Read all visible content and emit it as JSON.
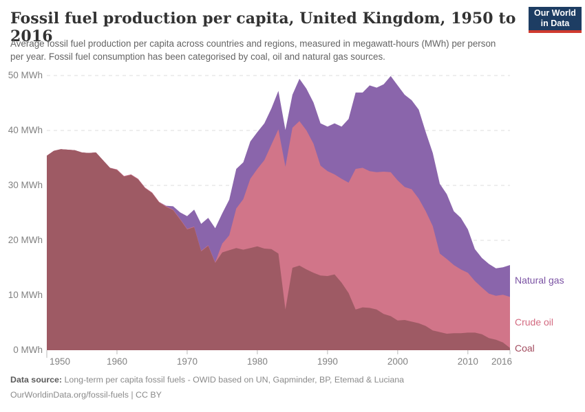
{
  "header": {
    "title": "Fossil fuel production per capita, United Kingdom, 1950 to 2016",
    "subtitle": "Average fossil fuel production per capita across countries and regions, measured in megawatt-hours (MWh) per person per year. Fossil fuel consumption has been categorised by coal, oil and natural gas sources.",
    "logo": {
      "line1": "Our World",
      "line2": "in Data"
    }
  },
  "colors": {
    "logo_bg": "#1d3d63",
    "logo_accent": "#d03a2f",
    "grid": "#dcdcdc",
    "tick": "#b8b8b8",
    "axis_text": "#818181"
  },
  "chart_data": {
    "type": "area",
    "stacked": true,
    "title": "Fossil fuel production per capita, United Kingdom, 1950 to 2016",
    "ylabel": "",
    "xlabel": "",
    "ylim": [
      0,
      50
    ],
    "grid": "horizontal-dashed",
    "legend_position": "right-of-plot",
    "x": [
      1950,
      1951,
      1952,
      1953,
      1954,
      1955,
      1956,
      1957,
      1958,
      1959,
      1960,
      1961,
      1962,
      1963,
      1964,
      1965,
      1966,
      1967,
      1968,
      1969,
      1970,
      1971,
      1972,
      1973,
      1974,
      1975,
      1976,
      1977,
      1978,
      1979,
      1980,
      1981,
      1982,
      1983,
      1984,
      1985,
      1986,
      1987,
      1988,
      1989,
      1990,
      1991,
      1992,
      1993,
      1994,
      1995,
      1996,
      1997,
      1998,
      1999,
      2000,
      2001,
      2002,
      2003,
      2004,
      2005,
      2006,
      2007,
      2008,
      2009,
      2010,
      2011,
      2012,
      2013,
      2014,
      2015,
      2016
    ],
    "unit": "MWh",
    "series": [
      {
        "name": "Coal",
        "color": "#9e5a64",
        "label_color": "#a24b5e",
        "values": [
          35.4,
          36.3,
          36.6,
          36.5,
          36.4,
          36.0,
          35.9,
          36.0,
          34.6,
          33.2,
          32.8,
          31.6,
          31.9,
          31.1,
          29.5,
          28.6,
          26.9,
          26.1,
          25.5,
          23.8,
          22.0,
          22.4,
          18.0,
          19.0,
          15.9,
          17.8,
          18.2,
          18.6,
          18.3,
          18.6,
          18.9,
          18.5,
          18.4,
          17.6,
          7.4,
          15.0,
          15.4,
          14.7,
          14.1,
          13.6,
          13.5,
          13.8,
          12.3,
          10.4,
          7.4,
          7.8,
          7.7,
          7.4,
          6.6,
          6.2,
          5.4,
          5.5,
          5.2,
          4.9,
          4.4,
          3.6,
          3.3,
          3.0,
          3.1,
          3.1,
          3.2,
          3.2,
          2.9,
          2.2,
          1.9,
          1.4,
          0.4
        ]
      },
      {
        "name": "Crude oil",
        "color": "#d17589",
        "label_color": "#d36a80",
        "values": [
          0,
          0,
          0,
          0,
          0,
          0,
          0,
          0,
          0,
          0,
          0.1,
          0.1,
          0.1,
          0.1,
          0.1,
          0.1,
          0.1,
          0.1,
          0.1,
          0.1,
          0.1,
          0.1,
          0.1,
          0.1,
          0.1,
          1.6,
          2.7,
          7.2,
          9.2,
          12.6,
          14.1,
          16.1,
          19.0,
          22.6,
          26.0,
          25.5,
          26.3,
          25.3,
          23.5,
          20.0,
          19.1,
          18.2,
          18.9,
          20.1,
          25.6,
          25.4,
          24.9,
          25.0,
          25.9,
          26.2,
          25.5,
          24.2,
          24.1,
          22.7,
          20.9,
          19.0,
          14.3,
          13.6,
          12.4,
          11.6,
          10.9,
          9.4,
          8.5,
          8.1,
          8.0,
          8.7,
          9.3
        ]
      },
      {
        "name": "Natural gas",
        "color": "#8a65ab",
        "label_color": "#7a52a3",
        "values": [
          0,
          0,
          0,
          0,
          0,
          0,
          0,
          0,
          0,
          0,
          0,
          0,
          0,
          0,
          0,
          0,
          0,
          0.1,
          0.6,
          1.2,
          2.3,
          3.1,
          4.9,
          5.0,
          6.2,
          5.5,
          6.5,
          7.2,
          6.7,
          6.8,
          6.7,
          6.7,
          6.6,
          7.0,
          6.7,
          6.0,
          7.7,
          7.6,
          7.5,
          7.7,
          8.1,
          9.3,
          9.5,
          11.6,
          13.9,
          13.7,
          15.6,
          15.4,
          15.9,
          17.5,
          17.3,
          16.8,
          16.2,
          16.2,
          14.4,
          13.3,
          12.7,
          11.8,
          9.8,
          9.4,
          7.9,
          5.8,
          5.4,
          5.4,
          5.0,
          5.0,
          5.8
        ]
      }
    ],
    "yticks": [
      {
        "value": 0,
        "label": "0 MWh"
      },
      {
        "value": 10,
        "label": "10 MWh"
      },
      {
        "value": 20,
        "label": "20 MWh"
      },
      {
        "value": 30,
        "label": "30 MWh"
      },
      {
        "value": 40,
        "label": "40 MWh"
      },
      {
        "value": 50,
        "label": "50 MWh"
      }
    ],
    "xticks": [
      {
        "value": 1950,
        "label": "1950"
      },
      {
        "value": 1960,
        "label": "1960"
      },
      {
        "value": 1970,
        "label": "1970"
      },
      {
        "value": 1980,
        "label": "1980"
      },
      {
        "value": 1990,
        "label": "1990"
      },
      {
        "value": 2000,
        "label": "2000"
      },
      {
        "value": 2010,
        "label": "2010"
      },
      {
        "value": 2016,
        "label": "2016"
      }
    ]
  },
  "footer": {
    "source_label": "Data source:",
    "source_text": " Long-term per capita fossil fuels - OWID based on UN, Gapminder, BP, Etemad & Luciana",
    "license_line": "OurWorldinData.org/fossil-fuels | CC BY"
  }
}
